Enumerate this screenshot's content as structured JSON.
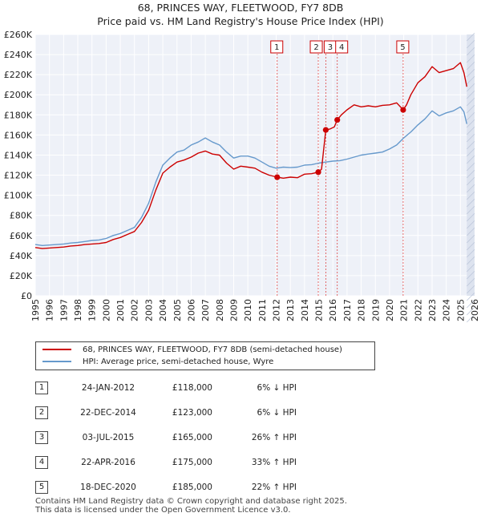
{
  "chart_data": {
    "type": "line",
    "title": "68, PRINCES WAY, FLEETWOOD, FY7 8DB",
    "subtitle": "Price paid vs. HM Land Registry's House Price Index (HPI)",
    "xlabel": "",
    "ylabel": "",
    "xlim": [
      1995,
      2026
    ],
    "ylim": [
      0,
      260000
    ],
    "grid": true,
    "x_ticks": [
      "1995",
      "1996",
      "1997",
      "1998",
      "1999",
      "2000",
      "2001",
      "2002",
      "2003",
      "2004",
      "2005",
      "2006",
      "2007",
      "2008",
      "2009",
      "2010",
      "2011",
      "2012",
      "2013",
      "2014",
      "2015",
      "2016",
      "2017",
      "2018",
      "2019",
      "2020",
      "2021",
      "2022",
      "2023",
      "2024",
      "2025",
      "2026"
    ],
    "y_ticks": [
      {
        "value": 0,
        "label": "£0"
      },
      {
        "value": 20000,
        "label": "£20K"
      },
      {
        "value": 40000,
        "label": "£40K"
      },
      {
        "value": 60000,
        "label": "£60K"
      },
      {
        "value": 80000,
        "label": "£80K"
      },
      {
        "value": 100000,
        "label": "£100K"
      },
      {
        "value": 120000,
        "label": "£120K"
      },
      {
        "value": 140000,
        "label": "£140K"
      },
      {
        "value": 160000,
        "label": "£160K"
      },
      {
        "value": 180000,
        "label": "£180K"
      },
      {
        "value": 200000,
        "label": "£200K"
      },
      {
        "value": 220000,
        "label": "£220K"
      },
      {
        "value": 240000,
        "label": "£240K"
      },
      {
        "value": 260000,
        "label": "£260K"
      }
    ],
    "series": [
      {
        "name": "68, PRINCES WAY, FLEETWOOD, FY7 8DB (semi-detached house)",
        "color": "#cc0000",
        "x": [
          1995.0,
          1995.5,
          1996.0,
          1996.5,
          1997.0,
          1997.5,
          1998.0,
          1998.5,
          1999.0,
          1999.5,
          2000.0,
          2000.5,
          2001.0,
          2001.5,
          2002.0,
          2002.5,
          2003.0,
          2003.5,
          2004.0,
          2004.5,
          2005.0,
          2005.5,
          2006.0,
          2006.5,
          2007.0,
          2007.5,
          2008.0,
          2008.5,
          2009.0,
          2009.5,
          2010.0,
          2010.5,
          2011.0,
          2011.5,
          2012.07,
          2012.5,
          2013.0,
          2013.5,
          2014.0,
          2014.5,
          2014.97,
          2015.2,
          2015.5,
          2015.8,
          2016.1,
          2016.31,
          2016.6,
          2017.0,
          2017.5,
          2018.0,
          2018.5,
          2019.0,
          2019.5,
          2020.0,
          2020.5,
          2020.96,
          2021.2,
          2021.5,
          2022.0,
          2022.5,
          2023.0,
          2023.5,
          2024.0,
          2024.5,
          2025.0,
          2025.25,
          2025.45
        ],
        "values": [
          48000,
          47000,
          47500,
          48000,
          48500,
          49500,
          50000,
          51000,
          51500,
          52000,
          53000,
          56000,
          58000,
          61000,
          64000,
          73000,
          85000,
          105000,
          122000,
          128000,
          133000,
          135000,
          138000,
          142000,
          144000,
          141000,
          140000,
          132000,
          126000,
          129000,
          128000,
          127000,
          123000,
          120000,
          118000,
          117000,
          118000,
          117500,
          121000,
          121500,
          123000,
          126000,
          165000,
          166000,
          168000,
          175000,
          180000,
          185000,
          190000,
          188000,
          189000,
          188000,
          189500,
          190000,
          192000,
          185000,
          190000,
          200000,
          212000,
          218000,
          228000,
          222000,
          224000,
          226000,
          232000,
          222000,
          208000
        ]
      },
      {
        "name": "HPI: Average price, semi-detached house, Wyre",
        "color": "#6699cc",
        "x": [
          1995.0,
          1995.5,
          1996.0,
          1996.5,
          1997.0,
          1997.5,
          1998.0,
          1998.5,
          1999.0,
          1999.5,
          2000.0,
          2000.5,
          2001.0,
          2001.5,
          2002.0,
          2002.5,
          2003.0,
          2003.5,
          2004.0,
          2004.5,
          2005.0,
          2005.5,
          2006.0,
          2006.5,
          2007.0,
          2007.5,
          2008.0,
          2008.5,
          2009.0,
          2009.5,
          2010.0,
          2010.5,
          2011.0,
          2011.5,
          2012.0,
          2012.5,
          2013.0,
          2013.5,
          2014.0,
          2014.5,
          2015.0,
          2015.5,
          2016.0,
          2016.5,
          2017.0,
          2017.5,
          2018.0,
          2018.5,
          2019.0,
          2019.5,
          2020.0,
          2020.5,
          2021.0,
          2021.5,
          2022.0,
          2022.5,
          2023.0,
          2023.5,
          2024.0,
          2024.5,
          2025.0,
          2025.25,
          2025.45
        ],
        "values": [
          51000,
          50000,
          50500,
          51000,
          51500,
          52500,
          53000,
          54000,
          55000,
          55500,
          57000,
          60000,
          62000,
          65000,
          68000,
          78000,
          92000,
          113000,
          130000,
          137000,
          143000,
          145000,
          150000,
          153000,
          157000,
          153000,
          150000,
          143000,
          137000,
          139000,
          139000,
          137000,
          133000,
          129000,
          127000,
          128000,
          127500,
          128000,
          130000,
          130500,
          132000,
          133000,
          134000,
          134500,
          136000,
          138000,
          140000,
          141000,
          142000,
          143000,
          146000,
          150000,
          157000,
          163000,
          170000,
          176000,
          184000,
          179000,
          182000,
          184000,
          188000,
          183000,
          171000
        ]
      }
    ],
    "sale_markers": [
      {
        "id": "1",
        "x": 2012.07,
        "value": 118000
      },
      {
        "id": "2",
        "x": 2014.97,
        "value": 123000
      },
      {
        "id": "3",
        "x": 2015.5,
        "value": 165000
      },
      {
        "id": "4",
        "x": 2016.31,
        "value": 175000
      },
      {
        "id": "5",
        "x": 2020.96,
        "value": 185000
      }
    ],
    "legend_position": "bottom"
  },
  "legend": {
    "entries": [
      {
        "label": "68, PRINCES WAY, FLEETWOOD, FY7 8DB (semi-detached house)",
        "color": "#cc0000"
      },
      {
        "label": "HPI: Average price, semi-detached house, Wyre",
        "color": "#6699cc"
      }
    ]
  },
  "sales": [
    {
      "num": "1",
      "date": "24-JAN-2012",
      "price": "£118,000",
      "hpi": "6% ↓ HPI"
    },
    {
      "num": "2",
      "date": "22-DEC-2014",
      "price": "£123,000",
      "hpi": "6% ↓ HPI"
    },
    {
      "num": "3",
      "date": "03-JUL-2015",
      "price": "£165,000",
      "hpi": "26% ↑ HPI"
    },
    {
      "num": "4",
      "date": "22-APR-2016",
      "price": "£175,000",
      "hpi": "33% ↑ HPI"
    },
    {
      "num": "5",
      "date": "18-DEC-2020",
      "price": "£185,000",
      "hpi": "22% ↑ HPI"
    }
  ],
  "footer": {
    "line1": "Contains HM Land Registry data © Crown copyright and database right 2025.",
    "line2": "This data is licensed under the Open Government Licence v3.0."
  }
}
